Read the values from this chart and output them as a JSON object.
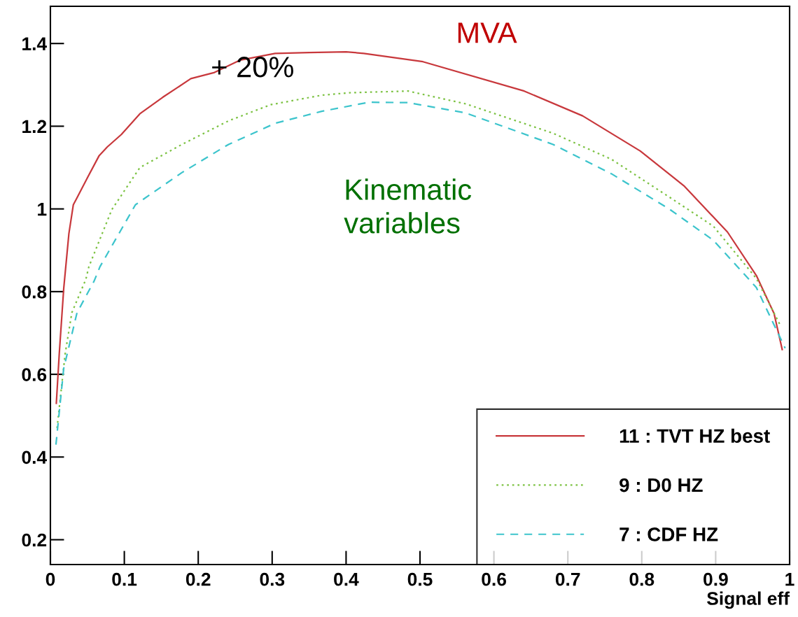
{
  "chart_data": {
    "type": "line",
    "xlabel": "Signal eff",
    "xlim": [
      0,
      1
    ],
    "ylim": [
      0.14,
      1.49
    ],
    "xticks": [
      0,
      0.1,
      0.2,
      0.3,
      0.4,
      0.5,
      0.6,
      0.7,
      0.8,
      0.9,
      1
    ],
    "yticks": [
      0.2,
      0.4,
      0.6,
      0.8,
      1,
      1.2,
      1.4
    ],
    "legend": "bottom right",
    "grid": false,
    "marker": "none",
    "annotations": [
      "MVA",
      "+ 20%",
      "Kinematic\nvariables"
    ],
    "series": [
      {
        "name": "11 : TVT HZ best",
        "color": "#c8383c",
        "line_style": "solid",
        "x": [
          0.008,
          0.012,
          0.018,
          0.025,
          0.031,
          0.036,
          0.05,
          0.066,
          0.077,
          0.096,
          0.121,
          0.152,
          0.19,
          0.222,
          0.257,
          0.304,
          0.35,
          0.4,
          0.424,
          0.504,
          0.641,
          0.72,
          0.798,
          0.857,
          0.916,
          0.955,
          0.979,
          0.99
        ],
        "values": [
          0.53,
          0.65,
          0.807,
          0.94,
          1.01,
          1.027,
          1.075,
          1.129,
          1.15,
          1.18,
          1.23,
          1.27,
          1.315,
          1.33,
          1.36,
          1.376,
          1.378,
          1.38,
          1.376,
          1.356,
          1.285,
          1.225,
          1.14,
          1.056,
          0.944,
          0.839,
          0.747,
          0.66
        ]
      },
      {
        "name": "9 : D0 HZ",
        "color": "#7cc242",
        "line_style": "dotted",
        "x": [
          0.009,
          0.02,
          0.029,
          0.048,
          0.052,
          0.083,
          0.121,
          0.178,
          0.241,
          0.298,
          0.367,
          0.405,
          0.484,
          0.562,
          0.68,
          0.759,
          0.837,
          0.897,
          0.955,
          0.987
        ],
        "values": [
          0.47,
          0.65,
          0.749,
          0.83,
          0.86,
          0.998,
          1.1,
          1.156,
          1.213,
          1.252,
          1.275,
          1.281,
          1.285,
          1.254,
          1.183,
          1.12,
          1.029,
          0.958,
          0.832,
          0.72
        ]
      },
      {
        "name": "7 : CDF HZ",
        "color": "#3cc4cc",
        "line_style": "dashed",
        "x": [
          0.0075,
          0.018,
          0.036,
          0.059,
          0.067,
          0.115,
          0.178,
          0.241,
          0.304,
          0.367,
          0.431,
          0.484,
          0.562,
          0.68,
          0.759,
          0.837,
          0.897,
          0.955,
          0.994
        ],
        "values": [
          0.43,
          0.614,
          0.749,
          0.825,
          0.86,
          1.01,
          1.088,
          1.156,
          1.207,
          1.236,
          1.258,
          1.257,
          1.232,
          1.156,
          1.085,
          1.0,
          0.924,
          0.81,
          0.663
        ]
      }
    ]
  }
}
